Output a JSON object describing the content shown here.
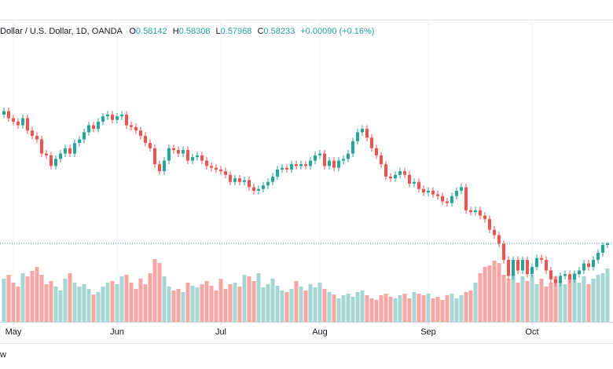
{
  "header": {
    "symbol": "Dollar / U.S. Dollar, 1D, OANDA",
    "ohlc_labels": [
      "O",
      "H",
      "L",
      "C"
    ],
    "change": "+0.00090 (+0.16%)"
  },
  "footer_text": "w",
  "chart_data": {
    "type": "candlestick",
    "up_color": "#26a69a",
    "down_color": "#ef5350",
    "volume_up_color": "#a5d6d2",
    "volume_down_color": "#f5a7a6",
    "ylim": [
      0.538,
      0.7086
    ],
    "volume_ylim": [
      0,
      100
    ],
    "xlim": [
      -0.83,
      129.17
    ],
    "xticks": [
      {
        "value": 2,
        "label": "May"
      },
      {
        "value": 24,
        "label": "Jun"
      },
      {
        "value": 46,
        "label": "Jul"
      },
      {
        "value": 67,
        "label": "Aug"
      },
      {
        "value": 90,
        "label": "Sep"
      },
      {
        "value": 112,
        "label": "Oct"
      }
    ],
    "grid": true,
    "open": [
      0.655,
      0.657,
      0.653,
      0.651,
      0.649,
      0.653,
      0.646,
      0.643,
      0.641,
      0.633,
      0.632,
      0.626,
      0.63,
      0.633,
      0.636,
      0.633,
      0.639,
      0.641,
      0.645,
      0.649,
      0.647,
      0.651,
      0.654,
      0.655,
      0.652,
      0.654,
      0.655,
      0.649,
      0.648,
      0.646,
      0.643,
      0.639,
      0.636,
      0.627,
      0.623,
      0.629,
      0.636,
      0.635,
      0.633,
      0.635,
      0.629,
      0.631,
      0.632,
      0.629,
      0.626,
      0.625,
      0.624,
      0.623,
      0.621,
      0.617,
      0.619,
      0.617,
      0.618,
      0.614,
      0.612,
      0.613,
      0.615,
      0.617,
      0.62,
      0.624,
      0.625,
      0.624,
      0.627,
      0.626,
      0.627,
      0.626,
      0.629,
      0.632,
      0.633,
      0.626,
      0.629,
      0.625,
      0.629,
      0.63,
      0.633,
      0.64,
      0.645,
      0.647,
      0.642,
      0.636,
      0.632,
      0.627,
      0.62,
      0.619,
      0.621,
      0.623,
      0.621,
      0.616,
      0.617,
      0.613,
      0.611,
      0.612,
      0.61,
      0.609,
      0.606,
      0.605,
      0.609,
      0.612,
      0.614,
      0.601,
      0.6,
      0.601,
      0.598,
      0.596,
      0.59,
      0.587,
      0.582,
      0.573,
      0.564,
      0.573,
      0.567,
      0.573,
      0.565,
      0.569,
      0.574,
      0.573,
      0.567,
      0.562,
      0.56,
      0.564,
      0.565,
      0.562,
      0.565,
      0.567,
      0.571,
      0.569,
      0.573,
      0.577,
      0.58142
    ],
    "high": [
      0.659,
      0.659,
      0.655,
      0.653,
      0.655,
      0.655,
      0.648,
      0.645,
      0.643,
      0.635,
      0.634,
      0.632,
      0.635,
      0.638,
      0.638,
      0.641,
      0.643,
      0.647,
      0.651,
      0.651,
      0.653,
      0.656,
      0.657,
      0.657,
      0.656,
      0.657,
      0.657,
      0.651,
      0.65,
      0.648,
      0.645,
      0.641,
      0.638,
      0.629,
      0.631,
      0.638,
      0.638,
      0.637,
      0.637,
      0.637,
      0.633,
      0.634,
      0.634,
      0.631,
      0.628,
      0.627,
      0.626,
      0.625,
      0.623,
      0.621,
      0.621,
      0.62,
      0.62,
      0.616,
      0.615,
      0.617,
      0.619,
      0.622,
      0.626,
      0.627,
      0.627,
      0.629,
      0.629,
      0.629,
      0.629,
      0.631,
      0.634,
      0.635,
      0.635,
      0.631,
      0.631,
      0.631,
      0.632,
      0.635,
      0.642,
      0.647,
      0.649,
      0.649,
      0.644,
      0.638,
      0.634,
      0.629,
      0.622,
      0.623,
      0.625,
      0.625,
      0.623,
      0.619,
      0.619,
      0.615,
      0.614,
      0.614,
      0.612,
      0.611,
      0.608,
      0.611,
      0.614,
      0.616,
      0.616,
      0.603,
      0.603,
      0.603,
      0.6,
      0.598,
      0.592,
      0.589,
      0.584,
      0.575,
      0.575,
      0.575,
      0.575,
      0.575,
      0.571,
      0.576,
      0.576,
      0.575,
      0.569,
      0.564,
      0.566,
      0.567,
      0.567,
      0.567,
      0.569,
      0.573,
      0.573,
      0.575,
      0.579,
      0.583,
      0.58308
    ],
    "low": [
      0.653,
      0.651,
      0.649,
      0.647,
      0.647,
      0.644,
      0.641,
      0.639,
      0.631,
      0.63,
      0.624,
      0.624,
      0.628,
      0.631,
      0.631,
      0.631,
      0.637,
      0.639,
      0.643,
      0.645,
      0.645,
      0.649,
      0.652,
      0.65,
      0.65,
      0.652,
      0.647,
      0.646,
      0.644,
      0.641,
      0.637,
      0.634,
      0.625,
      0.621,
      0.621,
      0.627,
      0.633,
      0.631,
      0.631,
      0.627,
      0.627,
      0.629,
      0.627,
      0.624,
      0.623,
      0.622,
      0.621,
      0.619,
      0.615,
      0.615,
      0.615,
      0.615,
      0.612,
      0.61,
      0.61,
      0.611,
      0.613,
      0.615,
      0.618,
      0.622,
      0.622,
      0.622,
      0.624,
      0.624,
      0.624,
      0.624,
      0.627,
      0.63,
      0.624,
      0.624,
      0.623,
      0.623,
      0.627,
      0.628,
      0.631,
      0.638,
      0.643,
      0.64,
      0.634,
      0.63,
      0.625,
      0.618,
      0.617,
      0.617,
      0.619,
      0.619,
      0.614,
      0.614,
      0.611,
      0.609,
      0.609,
      0.608,
      0.607,
      0.604,
      0.603,
      0.603,
      0.607,
      0.61,
      0.599,
      0.598,
      0.598,
      0.596,
      0.594,
      0.588,
      0.585,
      0.58,
      0.571,
      0.562,
      0.562,
      0.565,
      0.565,
      0.563,
      0.563,
      0.567,
      0.571,
      0.565,
      0.56,
      0.558,
      0.558,
      0.562,
      0.56,
      0.56,
      0.563,
      0.565,
      0.567,
      0.567,
      0.571,
      0.575,
      0.57968
    ],
    "close": [
      0.657,
      0.653,
      0.651,
      0.649,
      0.653,
      0.646,
      0.643,
      0.641,
      0.633,
      0.632,
      0.626,
      0.63,
      0.633,
      0.636,
      0.633,
      0.639,
      0.641,
      0.645,
      0.649,
      0.647,
      0.651,
      0.654,
      0.655,
      0.652,
      0.654,
      0.655,
      0.649,
      0.648,
      0.646,
      0.643,
      0.639,
      0.636,
      0.627,
      0.623,
      0.629,
      0.636,
      0.635,
      0.633,
      0.635,
      0.629,
      0.631,
      0.632,
      0.629,
      0.626,
      0.625,
      0.624,
      0.623,
      0.621,
      0.617,
      0.619,
      0.617,
      0.618,
      0.614,
      0.612,
      0.613,
      0.615,
      0.617,
      0.62,
      0.624,
      0.625,
      0.624,
      0.627,
      0.626,
      0.627,
      0.626,
      0.629,
      0.632,
      0.633,
      0.626,
      0.629,
      0.625,
      0.629,
      0.63,
      0.633,
      0.64,
      0.645,
      0.647,
      0.642,
      0.636,
      0.632,
      0.627,
      0.62,
      0.619,
      0.621,
      0.623,
      0.621,
      0.616,
      0.617,
      0.613,
      0.611,
      0.612,
      0.61,
      0.609,
      0.606,
      0.605,
      0.609,
      0.612,
      0.614,
      0.601,
      0.6,
      0.601,
      0.598,
      0.596,
      0.59,
      0.587,
      0.582,
      0.573,
      0.564,
      0.573,
      0.567,
      0.573,
      0.565,
      0.569,
      0.574,
      0.573,
      0.567,
      0.562,
      0.56,
      0.564,
      0.565,
      0.562,
      0.565,
      0.567,
      0.571,
      0.569,
      0.573,
      0.577,
      0.58143,
      0.58233
    ],
    "volume": [
      55,
      60,
      50,
      45,
      62,
      58,
      65,
      70,
      60,
      48,
      52,
      45,
      40,
      55,
      62,
      50,
      45,
      48,
      42,
      35,
      38,
      45,
      50,
      52,
      48,
      58,
      60,
      50,
      42,
      55,
      48,
      62,
      80,
      75,
      58,
      45,
      40,
      42,
      38,
      50,
      46,
      44,
      48,
      52,
      46,
      40,
      55,
      42,
      48,
      50,
      45,
      60,
      58,
      52,
      62,
      44,
      48,
      55,
      46,
      40,
      38,
      42,
      52,
      45,
      40,
      48,
      44,
      50,
      42,
      38,
      35,
      30,
      34,
      36,
      32,
      38,
      40,
      34,
      30,
      28,
      34,
      36,
      32,
      30,
      34,
      36,
      30,
      38,
      36,
      34,
      36,
      30,
      32,
      28,
      34,
      36,
      30,
      34,
      38,
      40,
      50,
      62,
      70,
      72,
      78,
      75,
      60,
      55,
      62,
      50,
      58,
      52,
      60,
      48,
      55,
      45,
      50,
      58,
      52,
      48,
      55,
      62,
      50,
      58,
      48,
      55,
      60,
      62,
      68
    ]
  }
}
